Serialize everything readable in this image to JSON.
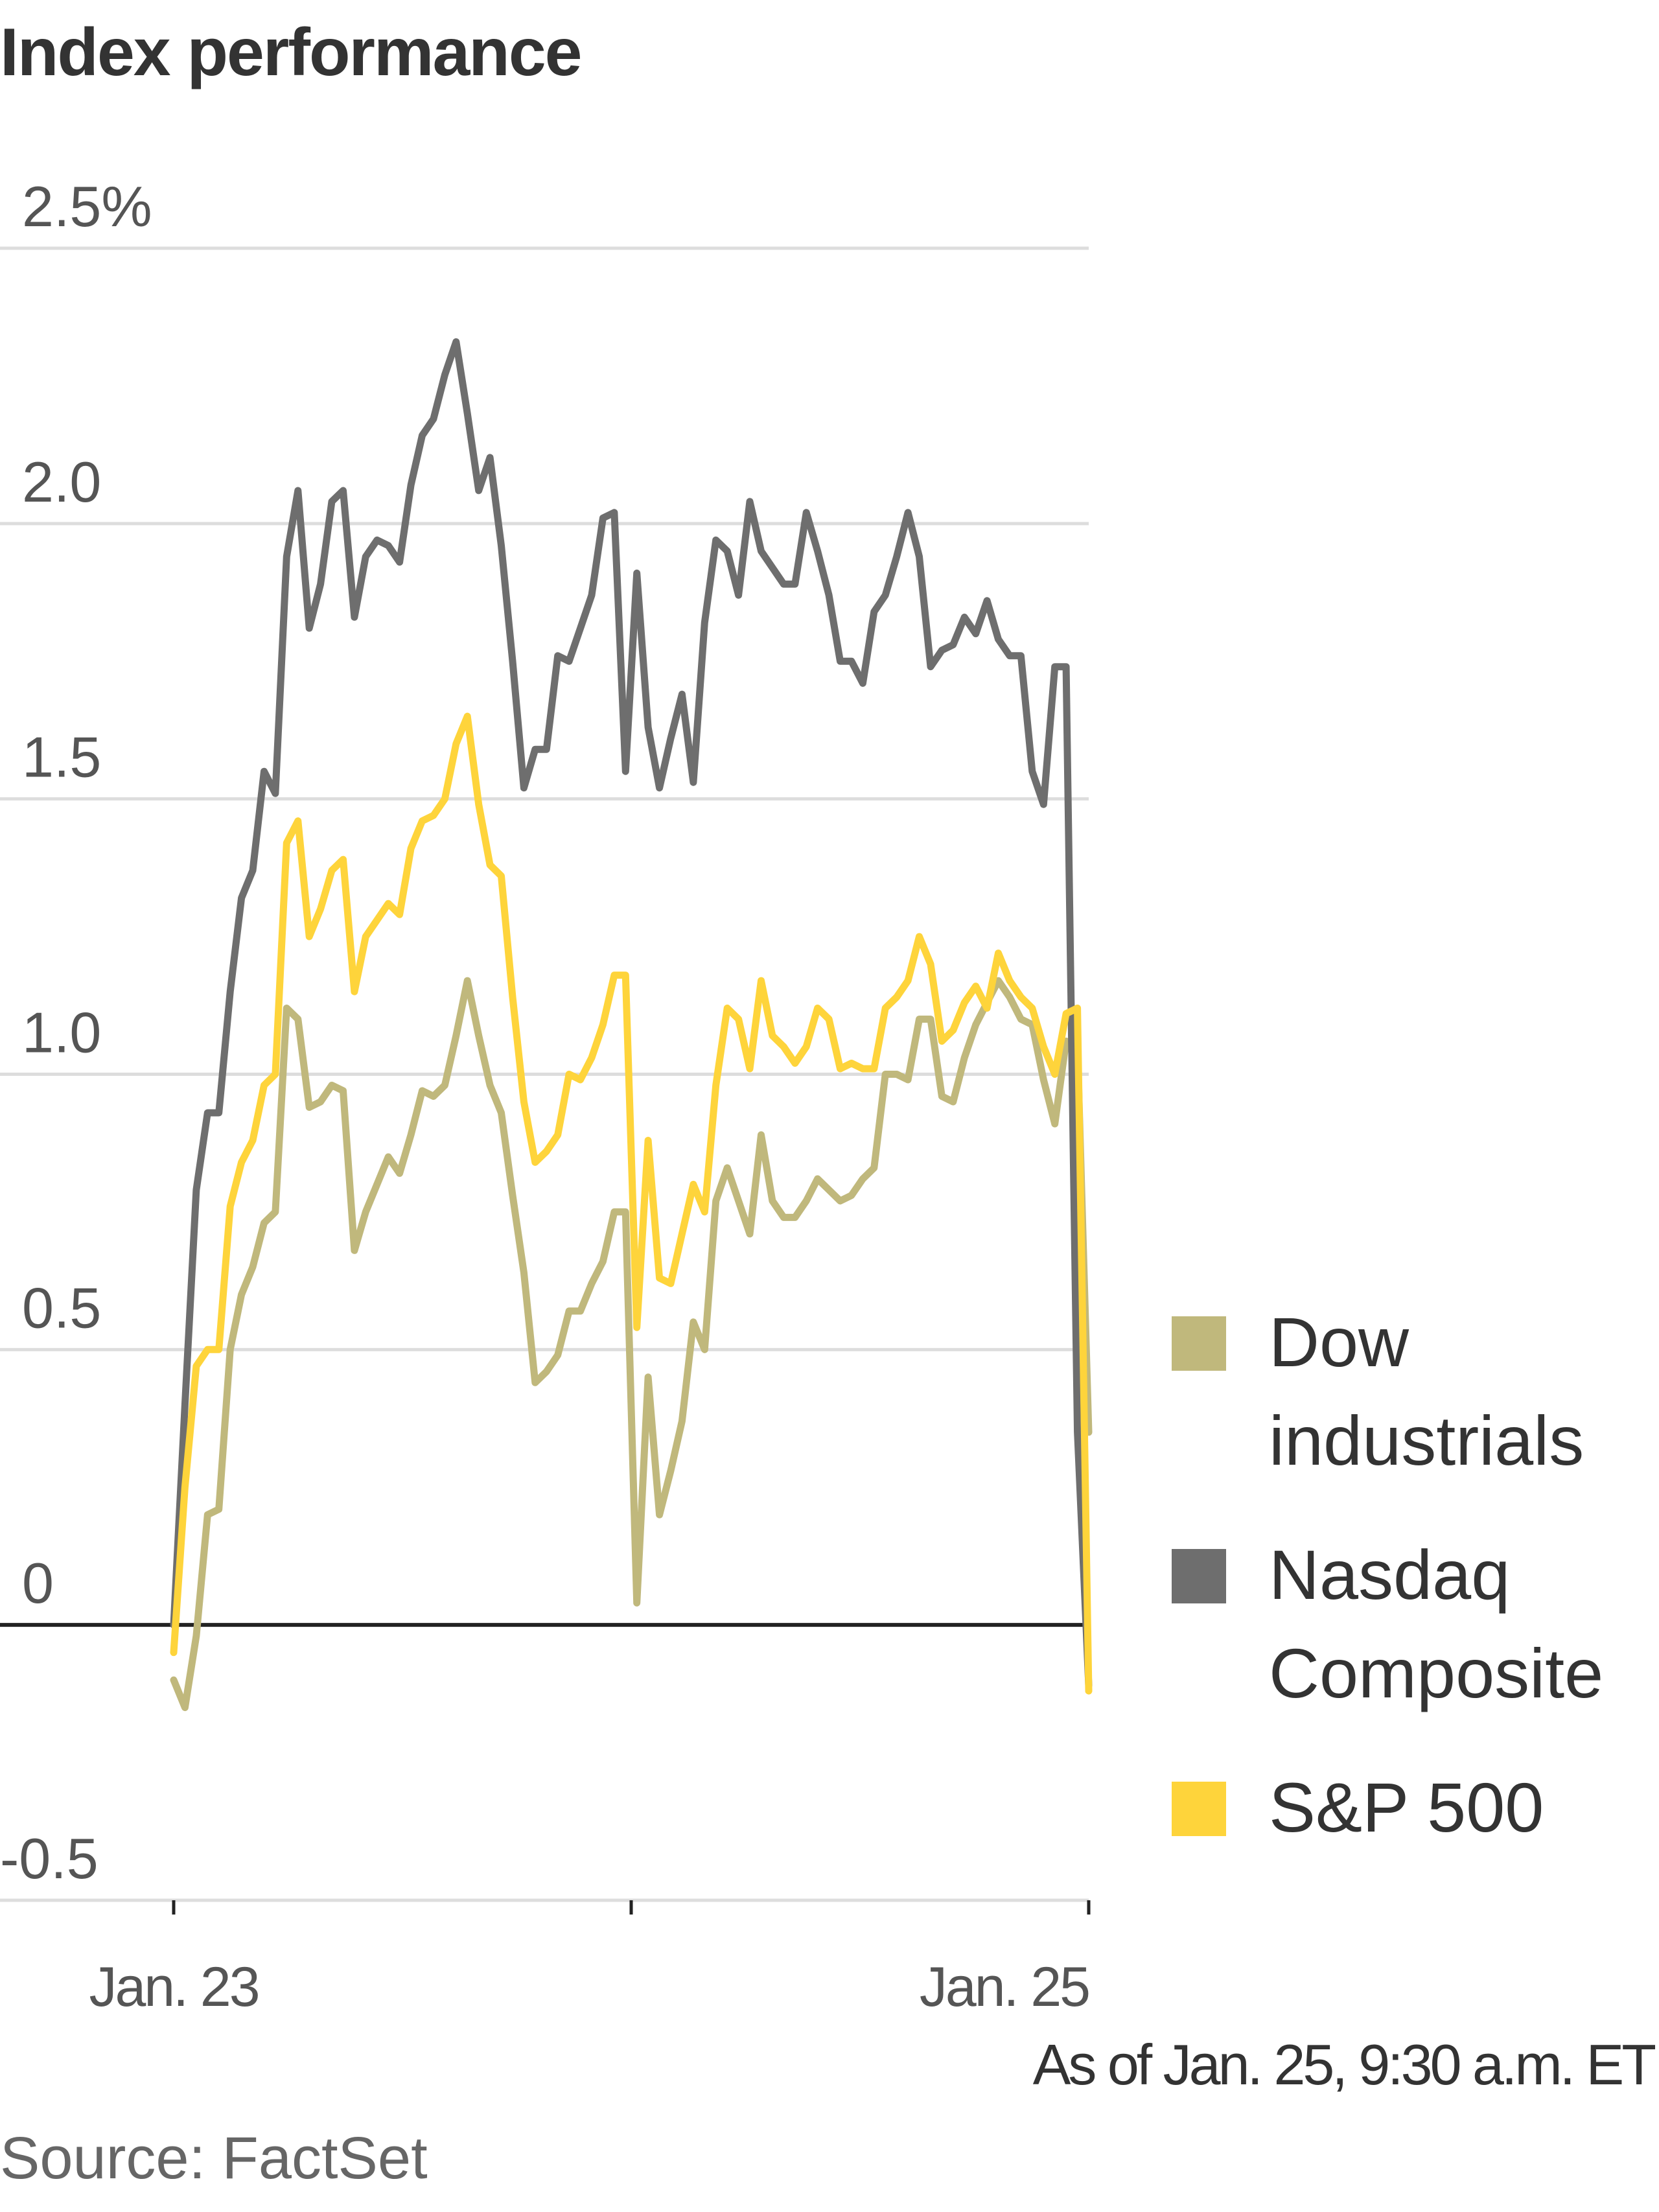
{
  "chart_data": {
    "type": "line",
    "title": "Index performance",
    "ylim": [
      -0.5,
      2.5
    ],
    "yticks": [
      {
        "value": 2.5,
        "label": "2.5%"
      },
      {
        "value": 2.0,
        "label": "2.0"
      },
      {
        "value": 1.5,
        "label": "1.5"
      },
      {
        "value": 1.0,
        "label": "1.0"
      },
      {
        "value": 0.5,
        "label": "0.5"
      },
      {
        "value": 0,
        "label": "0"
      },
      {
        "value": -0.5,
        "label": "-0.5"
      }
    ],
    "xtick_labels": [
      "Jan. 23",
      "Jan. 25"
    ],
    "grid": true,
    "legend_position": "right",
    "series": [
      {
        "name": "Dow industrials",
        "color": "#c0b87c",
        "values": [
          -0.1,
          -0.15,
          -0.02,
          0.2,
          0.21,
          0.5,
          0.6,
          0.65,
          0.73,
          0.75,
          1.12,
          1.1,
          0.94,
          0.95,
          0.98,
          0.97,
          0.68,
          0.75,
          0.8,
          0.85,
          0.82,
          0.89,
          0.97,
          0.96,
          0.98,
          1.07,
          1.17,
          1.07,
          0.98,
          0.93,
          0.78,
          0.64,
          0.44,
          0.46,
          0.49,
          0.57,
          0.57,
          0.62,
          0.66,
          0.75,
          0.75,
          0.04,
          0.45,
          0.2,
          0.28,
          0.37,
          0.55,
          0.5,
          0.77,
          0.83,
          0.77,
          0.71,
          0.89,
          0.77,
          0.74,
          0.74,
          0.77,
          0.81,
          0.79,
          0.77,
          0.78,
          0.81,
          0.83,
          1.0,
          1.0,
          0.99,
          1.1,
          1.1,
          0.96,
          0.95,
          1.03,
          1.09,
          1.13,
          1.17,
          1.14,
          1.1,
          1.09,
          0.99,
          0.91,
          1.06,
          1.05,
          0.35
        ]
      },
      {
        "name": "Nasdaq Composite",
        "color": "#6e6e6e",
        "values": [
          0.0,
          0.4,
          0.79,
          0.93,
          0.93,
          1.15,
          1.32,
          1.37,
          1.55,
          1.51,
          1.94,
          2.06,
          1.81,
          1.89,
          2.04,
          2.06,
          1.83,
          1.94,
          1.97,
          1.96,
          1.93,
          2.07,
          2.16,
          2.19,
          2.27,
          2.33,
          2.2,
          2.06,
          2.12,
          1.96,
          1.75,
          1.52,
          1.59,
          1.59,
          1.76,
          1.75,
          1.81,
          1.87,
          2.01,
          2.02,
          1.55,
          1.91,
          1.63,
          1.52,
          1.61,
          1.69,
          1.53,
          1.82,
          1.97,
          1.95,
          1.87,
          2.04,
          1.95,
          1.92,
          1.89,
          1.89,
          2.02,
          1.95,
          1.87,
          1.75,
          1.75,
          1.71,
          1.84,
          1.87,
          1.94,
          2.02,
          1.94,
          1.74,
          1.77,
          1.78,
          1.83,
          1.8,
          1.86,
          1.79,
          1.76,
          1.76,
          1.55,
          1.49,
          1.74,
          1.74,
          0.35,
          -0.11
        ]
      },
      {
        "name": "S&P 500",
        "color": "#fed43b",
        "values": [
          -0.05,
          0.25,
          0.47,
          0.5,
          0.5,
          0.76,
          0.84,
          0.88,
          0.98,
          1.0,
          1.42,
          1.46,
          1.25,
          1.3,
          1.37,
          1.39,
          1.15,
          1.25,
          1.28,
          1.31,
          1.29,
          1.41,
          1.46,
          1.47,
          1.5,
          1.6,
          1.65,
          1.49,
          1.38,
          1.36,
          1.14,
          0.95,
          0.84,
          0.86,
          0.89,
          1.0,
          0.99,
          1.03,
          1.09,
          1.18,
          1.18,
          0.54,
          0.88,
          0.63,
          0.62,
          0.71,
          0.8,
          0.75,
          0.98,
          1.12,
          1.1,
          1.01,
          1.17,
          1.07,
          1.05,
          1.02,
          1.05,
          1.12,
          1.1,
          1.01,
          1.02,
          1.01,
          1.01,
          1.12,
          1.14,
          1.17,
          1.25,
          1.2,
          1.06,
          1.08,
          1.13,
          1.16,
          1.12,
          1.22,
          1.17,
          1.14,
          1.12,
          1.05,
          1.0,
          1.11,
          1.12,
          -0.12
        ]
      }
    ],
    "legend": [
      {
        "label": "Dow industrials",
        "color": "#c0b87c"
      },
      {
        "label": "Nasdaq Composite",
        "color": "#6e6e6e"
      },
      {
        "label": "S&P 500",
        "color": "#fed43b"
      }
    ],
    "note": "As of Jan. 25, 9:30 a.m. ET",
    "source": "Source: FactSet"
  }
}
